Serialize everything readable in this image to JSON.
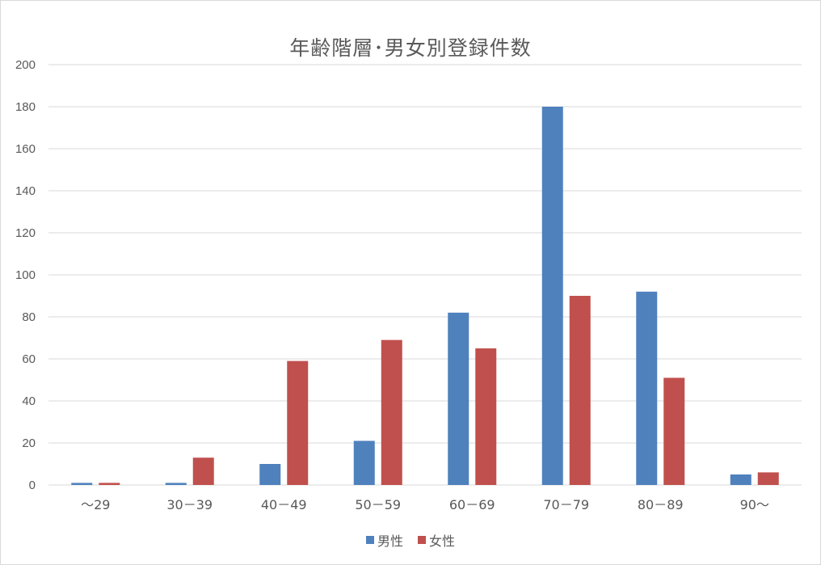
{
  "chart_data": {
    "type": "bar",
    "title": "年齢階層･男女別登録件数",
    "categories": [
      "～29",
      "30－39",
      "40－49",
      "50－59",
      "60－69",
      "70－79",
      "80－89",
      "90～"
    ],
    "series": [
      {
        "name": "男性",
        "color": "#4f81bd",
        "values": [
          1,
          1,
          10,
          21,
          82,
          180,
          92,
          5
        ]
      },
      {
        "name": "女性",
        "color": "#c0504d",
        "values": [
          1,
          13,
          59,
          69,
          65,
          90,
          51,
          6
        ]
      }
    ],
    "ylim": [
      0,
      200
    ],
    "yticks": [
      0,
      20,
      40,
      60,
      80,
      100,
      120,
      140,
      160,
      180,
      200
    ],
    "grid": true,
    "legend_position": "bottom"
  }
}
